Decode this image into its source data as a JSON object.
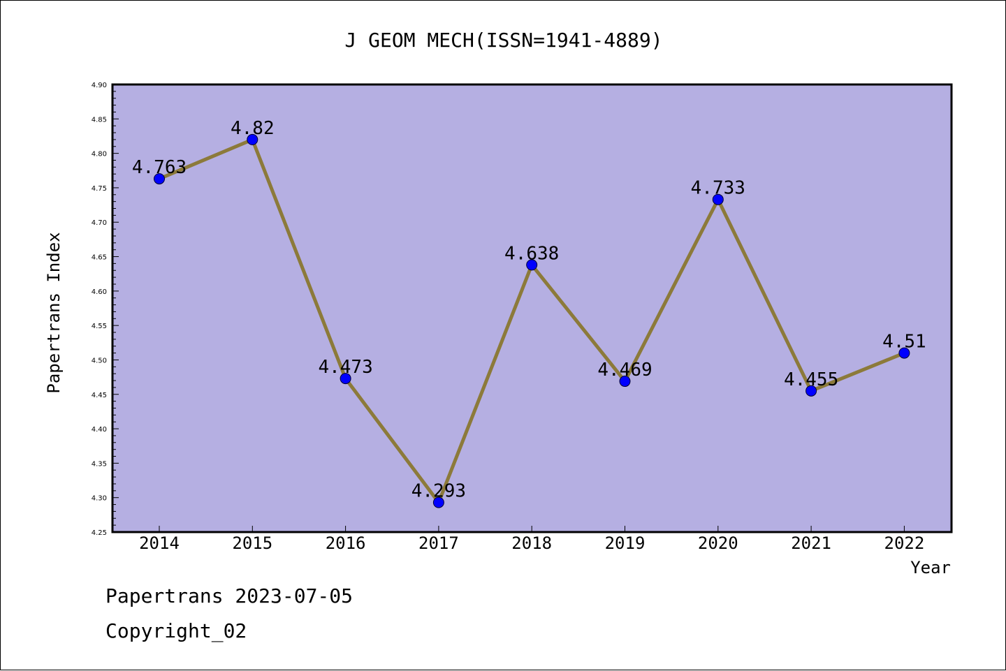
{
  "chart_data": {
    "type": "line",
    "title": "J GEOM MECH(ISSN=1941-4889)",
    "xlabel": "Year",
    "ylabel": "Papertrans Index",
    "categories": [
      "2014",
      "2015",
      "2016",
      "2017",
      "2018",
      "2019",
      "2020",
      "2021",
      "2022"
    ],
    "series": [
      {
        "values": [
          4.763,
          4.82,
          4.473,
          4.293,
          4.638,
          4.469,
          4.733,
          4.455,
          4.51
        ]
      }
    ],
    "data_labels": [
      "4.763",
      "4.82",
      "4.473",
      "4.293",
      "4.638",
      "4.469",
      "4.733",
      "4.455",
      "4.51"
    ],
    "ylim": [
      4.25,
      4.9
    ],
    "yticks": [
      "4.25",
      "4.30",
      "4.35",
      "4.40",
      "4.45",
      "4.50",
      "4.55",
      "4.60",
      "4.65",
      "4.70",
      "4.75",
      "4.80",
      "4.85",
      "4.90"
    ],
    "grid": false,
    "colors": {
      "plot_background": "#b5afe2",
      "line": "#8c7a3a",
      "marker": "#0000ff"
    }
  },
  "footer": {
    "date_text": "Papertrans 2023-07-05",
    "copyright_text": "Copyright_02"
  }
}
